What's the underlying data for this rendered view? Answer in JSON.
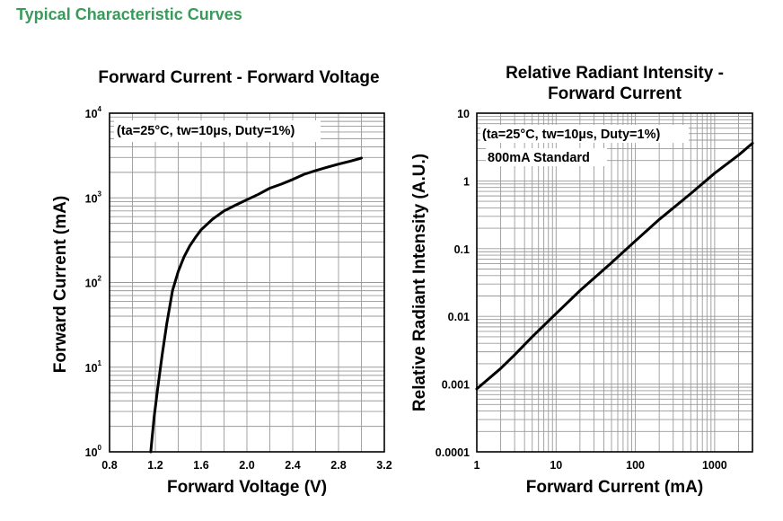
{
  "heading": "Typical Characteristic Curves",
  "chart_data": [
    {
      "type": "line",
      "title": "Forward Current - Forward Voltage",
      "xlabel": "Forward Voltage (V)",
      "ylabel": "Forward Current (mA)",
      "annotation": "(ta=25°C, tw=10µs, Duty=1%)",
      "xscale": "linear",
      "yscale": "log",
      "xlim": [
        0.8,
        3.2
      ],
      "ylim": [
        1,
        10000
      ],
      "grid": true,
      "x_ticks": [
        0.8,
        1.2,
        1.6,
        2.0,
        2.4,
        2.8,
        3.2
      ],
      "x_tick_labels": [
        "0.8",
        "1.2",
        "1.6",
        "2.0",
        "2.4",
        "2.8",
        "3.2"
      ],
      "y_ticks": [
        1,
        10,
        100,
        1000,
        10000
      ],
      "y_tick_labels": [
        {
          "base": "10",
          "exp": "0"
        },
        {
          "base": "10",
          "exp": "1"
        },
        {
          "base": "10",
          "exp": "2"
        },
        {
          "base": "10",
          "exp": "3"
        },
        {
          "base": "10",
          "exp": "4"
        }
      ],
      "series": [
        {
          "x": [
            1.16,
            1.17,
            1.19,
            1.22,
            1.26,
            1.3,
            1.35,
            1.4,
            1.45,
            1.5,
            1.55,
            1.6,
            1.7,
            1.8,
            1.9,
            2.0,
            2.1,
            2.2,
            2.3,
            2.4,
            2.5,
            2.6,
            2.7,
            2.8,
            2.9,
            3.0
          ],
          "y": [
            1,
            1.4,
            2.6,
            5.5,
            14,
            33,
            80,
            135,
            200,
            270,
            340,
            420,
            560,
            700,
            820,
            950,
            1100,
            1300,
            1450,
            1650,
            1900,
            2100,
            2300,
            2500,
            2700,
            2950
          ]
        }
      ]
    },
    {
      "type": "line",
      "title": [
        "Relative Radiant Intensity -",
        "Forward Current"
      ],
      "xlabel": "Forward Current (mA)",
      "ylabel": "Relative Radiant Intensity (A.U.)",
      "annotations": [
        "(ta=25°C, tw=10µs, Duty=1%)",
        "800mA Standard"
      ],
      "xscale": "log",
      "yscale": "log",
      "xlim": [
        1,
        3000
      ],
      "ylim": [
        0.0001,
        10
      ],
      "grid": true,
      "x_ticks": [
        1,
        10,
        100,
        1000
      ],
      "x_tick_labels": [
        "1",
        "10",
        "100",
        "1000"
      ],
      "y_ticks": [
        0.0001,
        0.001,
        0.01,
        0.1,
        1,
        10
      ],
      "y_tick_labels": [
        "0.0001",
        "0.001",
        "0.01",
        "0.1",
        "1",
        "10"
      ],
      "series": [
        {
          "x": [
            1,
            2,
            3,
            5,
            10,
            20,
            50,
            100,
            200,
            500,
            1000,
            2000,
            3000
          ],
          "y": [
            0.00085,
            0.0017,
            0.0027,
            0.005,
            0.011,
            0.024,
            0.062,
            0.13,
            0.27,
            0.65,
            1.3,
            2.4,
            3.6
          ]
        }
      ]
    }
  ]
}
